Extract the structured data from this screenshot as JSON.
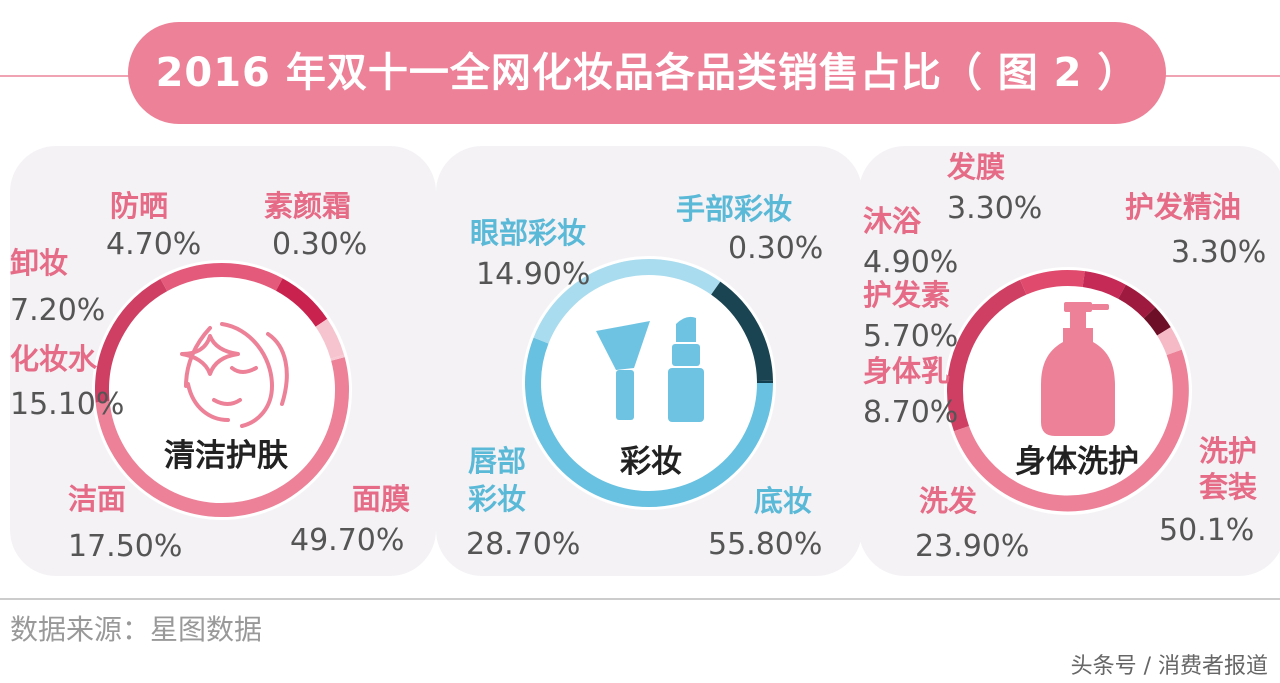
{
  "title": "2016 年双十一全网化妆品各品类销售占比（ 图 2 ）",
  "source": "数据来源：星图数据",
  "watermark": "头条号 / 消费者报道",
  "colors": {
    "banner": "#ec8198",
    "pink": "#e56b86",
    "blue": "#5bb9d8",
    "panel": "#f4f2f5"
  },
  "chart_data": [
    {
      "type": "pie",
      "title": "清洁护肤",
      "icon": "face-icon",
      "categories": [
        "面膜",
        "洁面",
        "化妆水",
        "卸妆",
        "防晒",
        "素颜霜"
      ],
      "values": [
        49.7,
        17.5,
        15.1,
        7.2,
        4.7,
        0.3
      ],
      "value_labels": [
        "49.70%",
        "17.50%",
        "15.10%",
        "7.20%",
        "4.70%",
        "0.30%"
      ],
      "colors": [
        "#ec8198",
        "#cf3f63",
        "#e45a7a",
        "#c9224f",
        "#f6c4ce",
        "#f7c9d3"
      ]
    },
    {
      "type": "pie",
      "title": "彩妆",
      "icon": "brush-lipstick-icon",
      "categories": [
        "底妆",
        "唇部彩妆",
        "眼部彩妆",
        "手部彩妆"
      ],
      "label_lines": [
        [
          "底妆"
        ],
        [
          "唇部",
          "彩妆"
        ],
        [
          "眼部彩妆"
        ],
        [
          "手部彩妆"
        ]
      ],
      "values": [
        55.8,
        28.7,
        14.9,
        0.3
      ],
      "value_labels": [
        "55.80%",
        "28.70%",
        "14.90%",
        "0.30%"
      ],
      "colors": [
        "#68c1e0",
        "#a9dcee",
        "#1a4452",
        "#134050"
      ]
    },
    {
      "type": "pie",
      "title": "身体洗护",
      "icon": "body-wash-bottle-icon",
      "categories": [
        "洗护套装",
        "洗发",
        "身体乳",
        "护发素",
        "沐浴",
        "发膜",
        "护发精油"
      ],
      "label_lines": [
        [
          "洗护",
          "套装"
        ],
        [
          "洗发"
        ],
        [
          "身体乳"
        ],
        [
          "护发素"
        ],
        [
          "沐浴"
        ],
        [
          "发膜"
        ],
        [
          "护发精油"
        ]
      ],
      "values": [
        50.1,
        23.9,
        8.7,
        5.7,
        4.9,
        3.3,
        3.3
      ],
      "value_labels": [
        "50.1%",
        "23.90%",
        "8.70%",
        "5.70%",
        "4.90%",
        "3.30%",
        "3.30%"
      ],
      "colors": [
        "#ec8198",
        "#cf3f63",
        "#e04a6c",
        "#c42a55",
        "#9e1a3e",
        "#6d0f26",
        "#f6b9c6"
      ]
    }
  ]
}
